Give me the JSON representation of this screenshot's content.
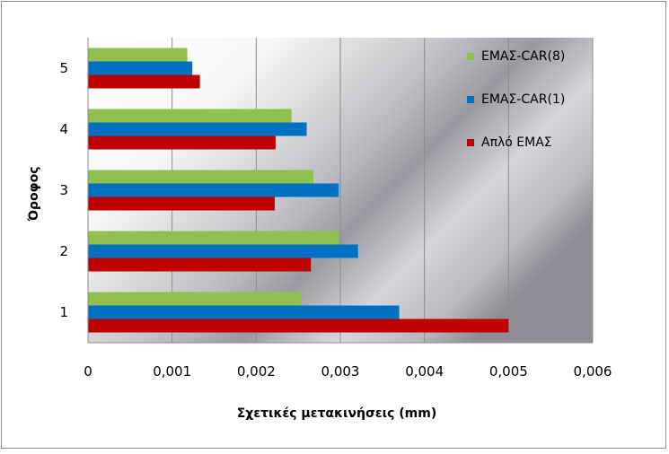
{
  "chart_data": {
    "type": "bar",
    "orientation": "horizontal",
    "title": "",
    "xlabel": "Σχετικές μετακινήσεις  (mm)",
    "ylabel": "Όροφος",
    "categories": [
      "1",
      "2",
      "3",
      "4",
      "5"
    ],
    "xlim": [
      0,
      0.006
    ],
    "xticks": [
      "0",
      "0,001",
      "0,002",
      "0,003",
      "0,004",
      "0,005",
      "0,006"
    ],
    "xtick_values": [
      0,
      0.001,
      0.002,
      0.003,
      0.004,
      0.005,
      0.006
    ],
    "grid": true,
    "legend_position": "right",
    "series": [
      {
        "name": "Απλό ΕΜΑΣ",
        "color": "#c00000",
        "values": [
          0.005,
          0.00265,
          0.00222,
          0.00223,
          0.00133
        ]
      },
      {
        "name": "ΕΜΑΣ-CAR(1)",
        "color": "#0070c0",
        "values": [
          0.0037,
          0.00321,
          0.00298,
          0.0026,
          0.00124
        ]
      },
      {
        "name": "ΕΜΑΣ-CAR(8)",
        "color": "#92c050",
        "values": [
          0.00253,
          0.00299,
          0.00268,
          0.00242,
          0.00118
        ]
      }
    ],
    "legend_order": [
      2,
      1,
      0
    ]
  }
}
